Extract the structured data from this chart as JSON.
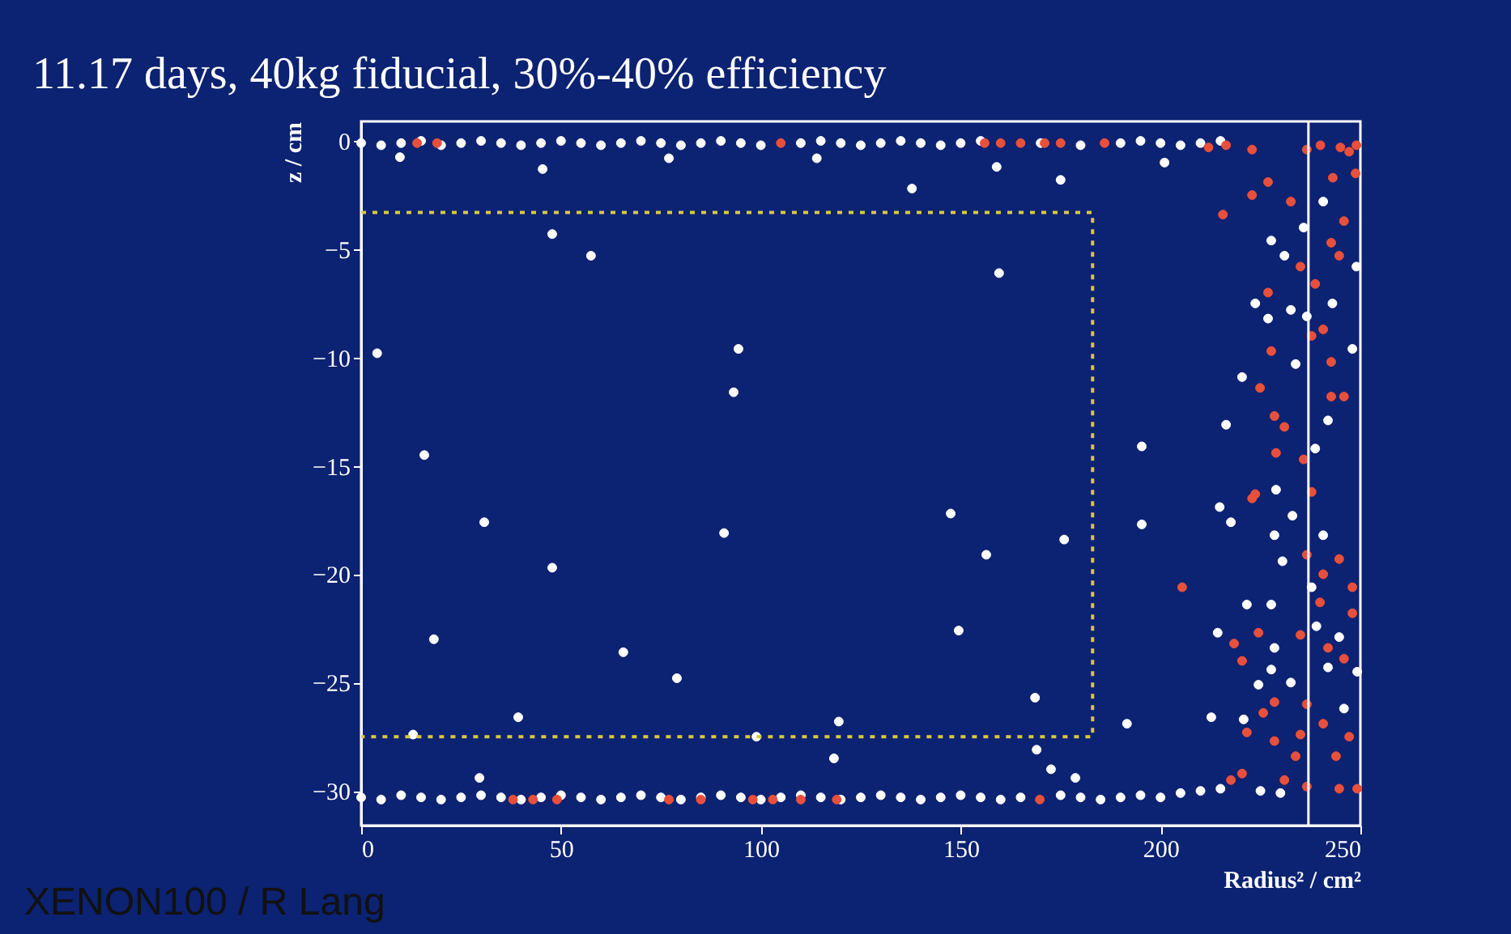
{
  "chart_data": {
    "type": "scatter",
    "title": "11.17 days, 40kg fiducial, 30%-40% efficiency",
    "xlabel": "Radius² / cm²",
    "ylabel": "z / cm",
    "xlim": [
      0,
      250
    ],
    "xticks": [
      0,
      50,
      100,
      150,
      200,
      250
    ],
    "ylim": [
      -31.6,
      0.9
    ],
    "yticks": [
      -30,
      -25,
      -20,
      -15,
      -10,
      -5,
      0
    ],
    "grid": false,
    "legend": false,
    "marker": "circle",
    "annotations": [
      "XENON100 / R Lang"
    ],
    "ref_lines": [
      {
        "axis": "x",
        "value": 237,
        "label": null,
        "color": "#ffffff"
      }
    ],
    "series": [
      {
        "color": "#ffffff",
        "x": [
          4,
          15.8,
          30.8,
          18.2,
          13,
          29.6,
          39.3,
          47.8,
          47.8,
          57.5,
          45.4,
          65.6,
          79,
          90.8,
          94.4,
          93.2,
          98.9,
          119.5,
          118.3,
          114,
          159,
          137.8,
          175,
          201,
          159.6,
          147.5,
          156.4,
          175.9,
          149.5,
          168.6,
          169,
          172.6,
          178.7,
          191.6,
          195.3,
          195.3,
          9.7,
          77,
          227.7,
          231,
          223.7,
          226.9,
          232.6,
          236.6,
          220.4,
          233.8,
          248,
          249,
          243,
          241.9,
          238.7,
          216.4,
          214.8,
          217.6,
          228.9,
          233,
          235.8,
          240.7,
          221.6,
          227.7,
          214.3,
          228.5,
          227.7,
          224.5,
          232.6,
          212.7,
          220.8,
          240.7,
          237.8,
          249.2,
          245.9,
          241.9,
          244.7,
          239,
          228.5,
          230.5,
          0,
          5,
          10,
          15,
          20,
          25,
          30,
          35,
          40,
          45,
          50,
          55,
          60,
          65,
          70,
          75,
          80,
          85,
          90,
          95,
          100,
          110,
          115,
          120,
          125,
          130,
          135,
          140,
          145,
          150,
          155,
          170,
          180,
          190,
          195,
          200,
          205,
          210,
          215,
          0,
          5,
          10,
          15,
          20,
          25,
          30,
          35,
          40,
          45,
          50,
          55,
          60,
          65,
          70,
          75,
          80,
          85,
          90,
          95,
          100,
          105,
          110,
          115,
          120,
          125,
          130,
          135,
          140,
          145,
          150,
          155,
          160,
          165,
          175,
          180,
          185,
          190,
          195,
          200,
          205,
          210,
          215,
          225,
          230
        ],
        "values": [
          -9.8,
          -14.5,
          -17.6,
          -23.0,
          -27.4,
          -29.4,
          -26.6,
          -19.7,
          -4.3,
          -5.3,
          -1.3,
          -23.6,
          -24.8,
          -18.1,
          -9.6,
          -11.6,
          -27.5,
          -26.8,
          -28.5,
          -0.8,
          -1.2,
          -2.2,
          -1.8,
          -1.0,
          -6.1,
          -17.2,
          -19.1,
          -18.4,
          -22.6,
          -25.7,
          -28.1,
          -29.0,
          -29.4,
          -26.9,
          -14.1,
          -17.7,
          -0.75,
          -0.8,
          -4.6,
          -5.3,
          -7.5,
          -8.2,
          -7.8,
          -8.1,
          -10.9,
          -10.3,
          -9.6,
          -5.8,
          -7.5,
          -12.9,
          -14.2,
          -13.1,
          -16.9,
          -17.6,
          -16.1,
          -17.3,
          -4.0,
          -2.8,
          -21.4,
          -21.4,
          -22.7,
          -23.4,
          -24.4,
          -25.1,
          -25.0,
          -26.6,
          -26.7,
          -18.2,
          -20.6,
          -24.5,
          -26.2,
          -24.3,
          -22.9,
          -22.4,
          -18.2,
          -19.4,
          -0.1,
          -0.2,
          -0.1,
          0,
          -0.2,
          -0.1,
          0,
          -0.1,
          -0.2,
          -0.1,
          0,
          -0.1,
          -0.2,
          -0.1,
          0,
          -0.1,
          -0.2,
          -0.1,
          0,
          -0.1,
          -0.2,
          -0.1,
          0,
          -0.1,
          -0.2,
          -0.1,
          0,
          -0.1,
          -0.2,
          -0.1,
          0,
          -0.1,
          -0.2,
          -0.1,
          0,
          -0.1,
          -0.2,
          -0.1,
          0,
          -30.3,
          -30.4,
          -30.2,
          -30.3,
          -30.4,
          -30.3,
          -30.2,
          -30.3,
          -30.4,
          -30.3,
          -30.2,
          -30.3,
          -30.4,
          -30.3,
          -30.2,
          -30.3,
          -30.4,
          -30.3,
          -30.2,
          -30.3,
          -30.4,
          -30.3,
          -30.2,
          -30.3,
          -30.4,
          -30.3,
          -30.2,
          -30.3,
          -30.4,
          -30.3,
          -30.2,
          -30.3,
          -30.4,
          -30.3,
          -30.2,
          -30.3,
          -30.4,
          -30.3,
          -30.2,
          -30.3,
          -30.1,
          -30.0,
          -29.9,
          -30.0,
          -30.1
        ]
      },
      {
        "color": "#e8503c",
        "x": [
          215.6,
          222.9,
          226.9,
          232.6,
          243.1,
          247.2,
          236.6,
          222.9,
          216.4,
          242.7,
          244.7,
          235,
          238.7,
          226.9,
          237.8,
          240.7,
          227.7,
          242.7,
          224.9,
          242.7,
          245.9,
          228.5,
          231,
          228.9,
          235.8,
          222.9,
          237.8,
          248.8,
          245.9,
          205.4,
          223.7,
          236.6,
          240.7,
          244.7,
          248,
          239.9,
          248,
          218.4,
          224.5,
          235,
          220.4,
          241.9,
          245.9,
          228.5,
          225.7,
          236.6,
          221.6,
          228.5,
          235,
          240.7,
          247.2,
          233.8,
          243.9,
          217.6,
          220.4,
          231,
          236.6,
          244.7,
          249.2,
          169.8,
          14,
          19,
          105,
          156,
          160,
          165,
          171,
          175,
          186,
          38,
          43,
          49,
          77,
          85,
          98,
          103,
          110,
          119,
          212,
          240,
          245,
          249
        ],
        "values": [
          -3.4,
          -2.5,
          -1.9,
          -2.8,
          -1.7,
          -0.5,
          -0.4,
          -0.4,
          -0.2,
          -4.7,
          -5.3,
          -5.8,
          -6.6,
          -7.0,
          -9.0,
          -8.7,
          -9.7,
          -10.2,
          -11.4,
          -11.8,
          -11.8,
          -12.7,
          -13.2,
          -14.4,
          -14.7,
          -16.5,
          -16.2,
          -1.5,
          -3.7,
          -20.6,
          -16.3,
          -19.1,
          -20.0,
          -19.3,
          -20.6,
          -21.3,
          -21.8,
          -23.2,
          -22.7,
          -22.8,
          -24.0,
          -23.4,
          -23.9,
          -25.9,
          -26.4,
          -26.0,
          -27.3,
          -27.7,
          -27.4,
          -26.9,
          -27.5,
          -28.4,
          -28.4,
          -29.5,
          -29.2,
          -29.5,
          -29.8,
          -29.9,
          -29.9,
          -30.4,
          -0.1,
          -0.1,
          -0.1,
          -0.1,
          -0.1,
          -0.1,
          -0.1,
          -0.1,
          -0.1,
          -30.4,
          -30.4,
          -30.4,
          -30.4,
          -30.4,
          -30.4,
          -30.4,
          -30.4,
          -30.4,
          -0.3,
          -0.2,
          -0.3,
          -0.2
        ]
      },
      {
        "type": "line",
        "color": "#d8c840",
        "line_style": "dotted",
        "marker": "none",
        "x": [
          0,
          183,
          183,
          0
        ],
        "values": [
          -3.3,
          -3.3,
          -27.5,
          -27.5
        ]
      }
    ]
  }
}
